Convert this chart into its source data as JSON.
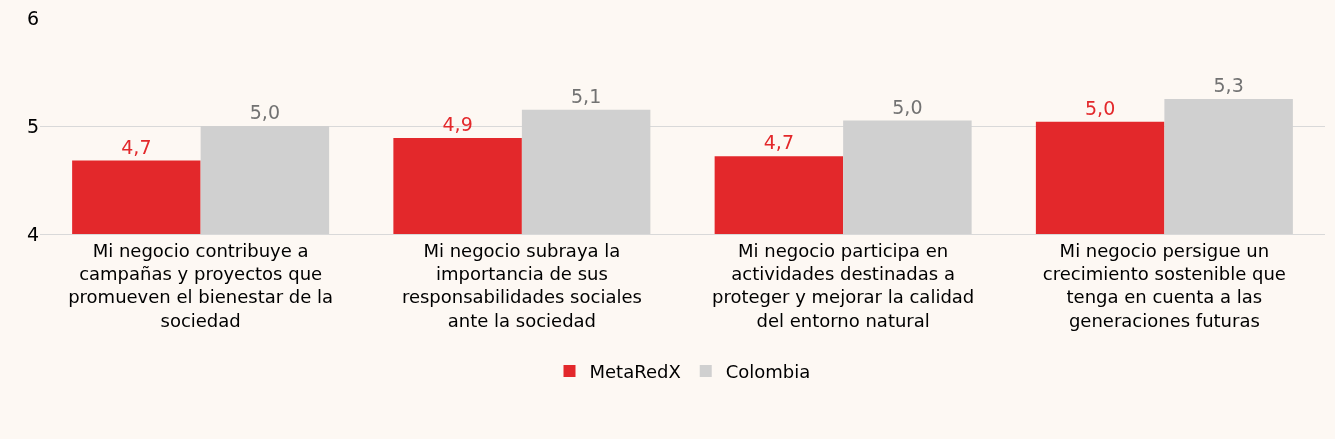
{
  "chart_data": {
    "type": "bar",
    "categories": [
      "Mi negocio contribuye a campañas y proyectos que promueven el bienestar de la sociedad",
      "Mi negocio subraya la importancia de sus responsabilidades sociales ante la sociedad",
      "Mi negocio participa en actividades destinadas a proteger y mejorar la calidad del entorno natural",
      "Mi negocio persigue un crecimiento sostenible que tenga en cuenta a las generaciones futuras"
    ],
    "series": [
      {
        "name": "MetaRedX",
        "color": "#e3282b",
        "values": [
          4.68,
          4.89,
          4.72,
          5.04
        ],
        "value_labels": [
          "4,7",
          "4,9",
          "4,7",
          "5,0"
        ]
      },
      {
        "name": "Colombia",
        "color": "#d0d0d0",
        "values": [
          5.0,
          5.15,
          5.05,
          5.25
        ],
        "value_labels": [
          "5,0",
          "5,1",
          "5,0",
          "5,3"
        ]
      }
    ],
    "ylim": [
      4,
      6
    ],
    "yticks": [
      4,
      5,
      6
    ],
    "grid": "y",
    "legend": "bottom"
  }
}
